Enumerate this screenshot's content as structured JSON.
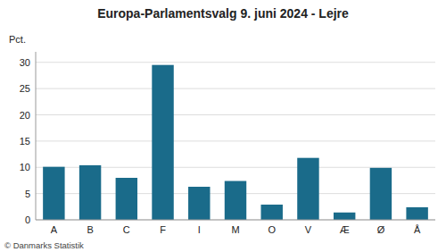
{
  "chart_data": {
    "type": "bar",
    "title": "Europa-Parlamentsvalg 9. juni 2024 - Lejre",
    "categories": [
      "A",
      "B",
      "C",
      "F",
      "I",
      "M",
      "O",
      "V",
      "Æ",
      "Ø",
      "Å"
    ],
    "values": [
      10.1,
      10.4,
      8.0,
      29.5,
      6.3,
      7.4,
      2.9,
      11.8,
      1.4,
      9.9,
      2.4
    ],
    "color": "#1a6b8a",
    "ylabel": "Pct.",
    "footer": "© Danmarks Statistik",
    "ylim": [
      0,
      32
    ],
    "yticks": [
      0,
      5,
      10,
      15,
      20,
      25,
      30
    ],
    "grid": true
  }
}
